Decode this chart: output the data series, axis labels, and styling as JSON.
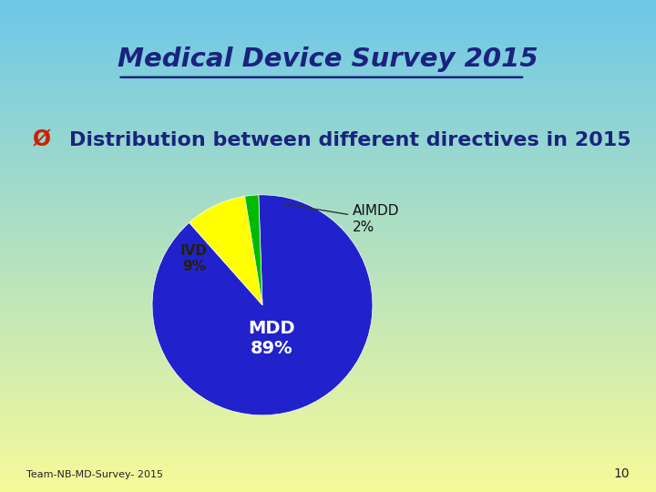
{
  "title": "Medical Device Survey 2015",
  "subtitle_bullet": "Ø",
  "subtitle": "Distribution between different directives in 2015",
  "slices": [
    89,
    9,
    2
  ],
  "labels": [
    "MDD",
    "IVD",
    "AIMDD"
  ],
  "percentages": [
    "89%",
    "9%",
    "2%"
  ],
  "colors": [
    "#2222CC",
    "#FFFF00",
    "#00BB00"
  ],
  "title_color": "#1A237E",
  "subtitle_color": "#1A237E",
  "bullet_color": "#CC2200",
  "footer_text": "Team-NB-MD-Survey- 2015",
  "footer_page": "10",
  "startangle": 92
}
